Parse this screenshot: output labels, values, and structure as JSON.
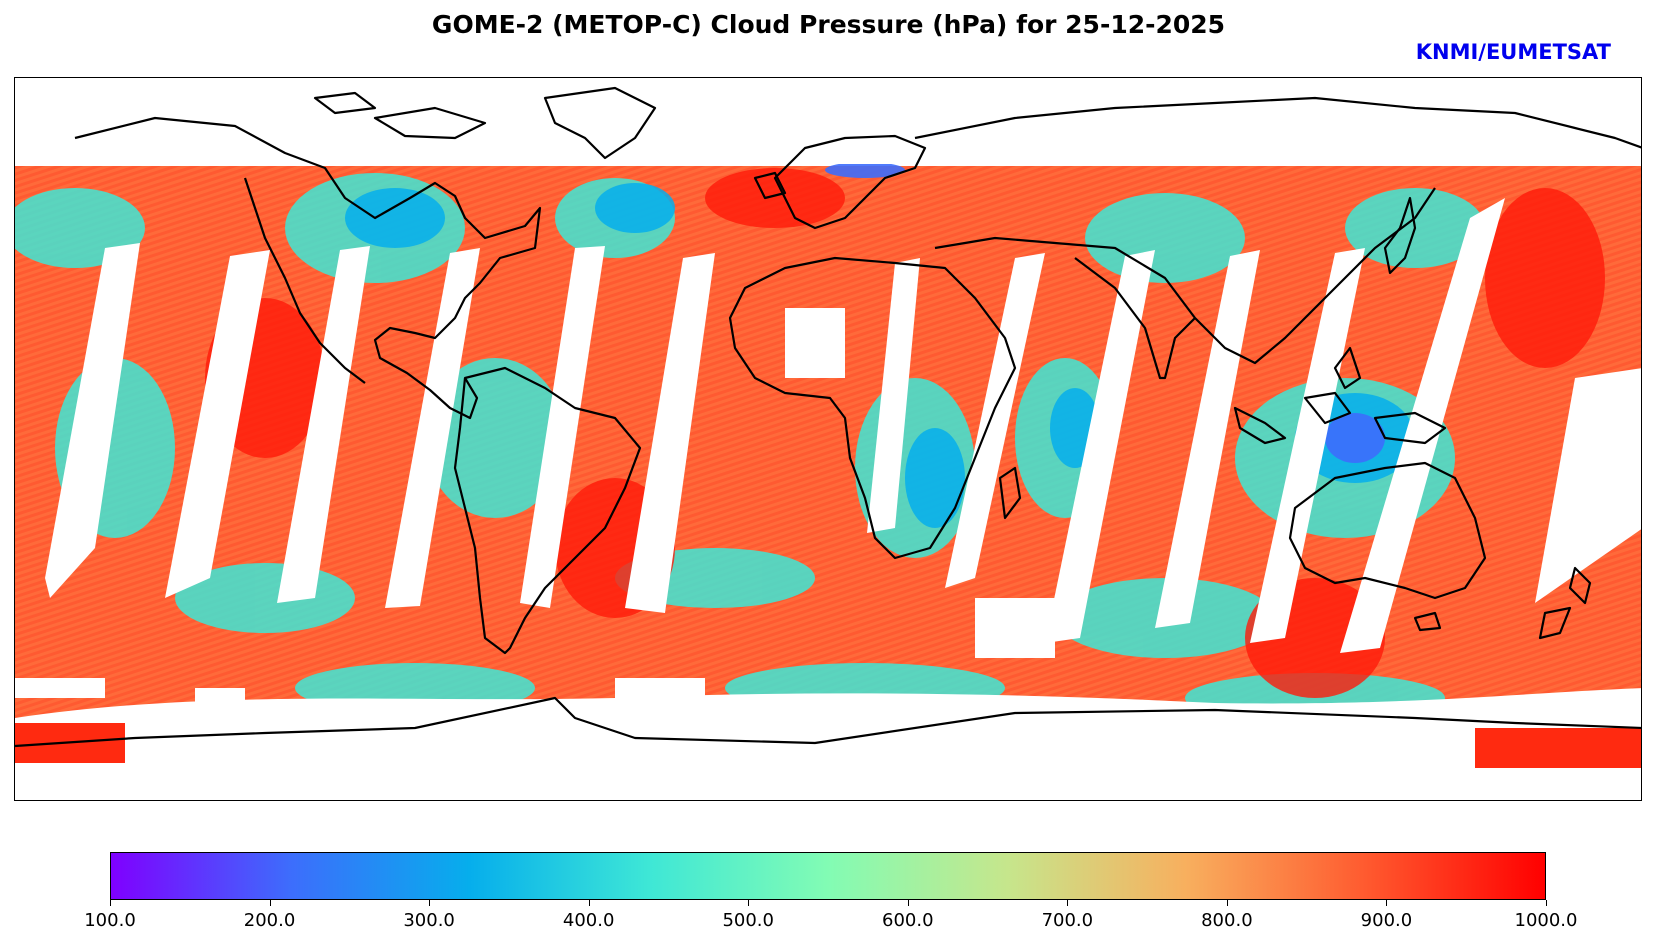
{
  "title": "GOME-2 (METOP-C) Cloud Pressure (hPa) for 25-12-2025",
  "credit": "KNMI/EUMETSAT",
  "colors": {
    "credit": "#0000ee",
    "coastline": "#000000"
  },
  "colorbar": {
    "min": 100.0,
    "max": 1000.0,
    "stops": [
      "#7f00ff",
      "#3d6dfc",
      "#06aeec",
      "#3ee7d6",
      "#82fcb4",
      "#c6e68c",
      "#f8af5e",
      "#ff5a2f",
      "#ff0000"
    ],
    "tick_labels": [
      "100.0",
      "200.0",
      "300.0",
      "400.0",
      "500.0",
      "600.0",
      "700.0",
      "800.0",
      "900.0",
      "1000.0"
    ]
  }
}
